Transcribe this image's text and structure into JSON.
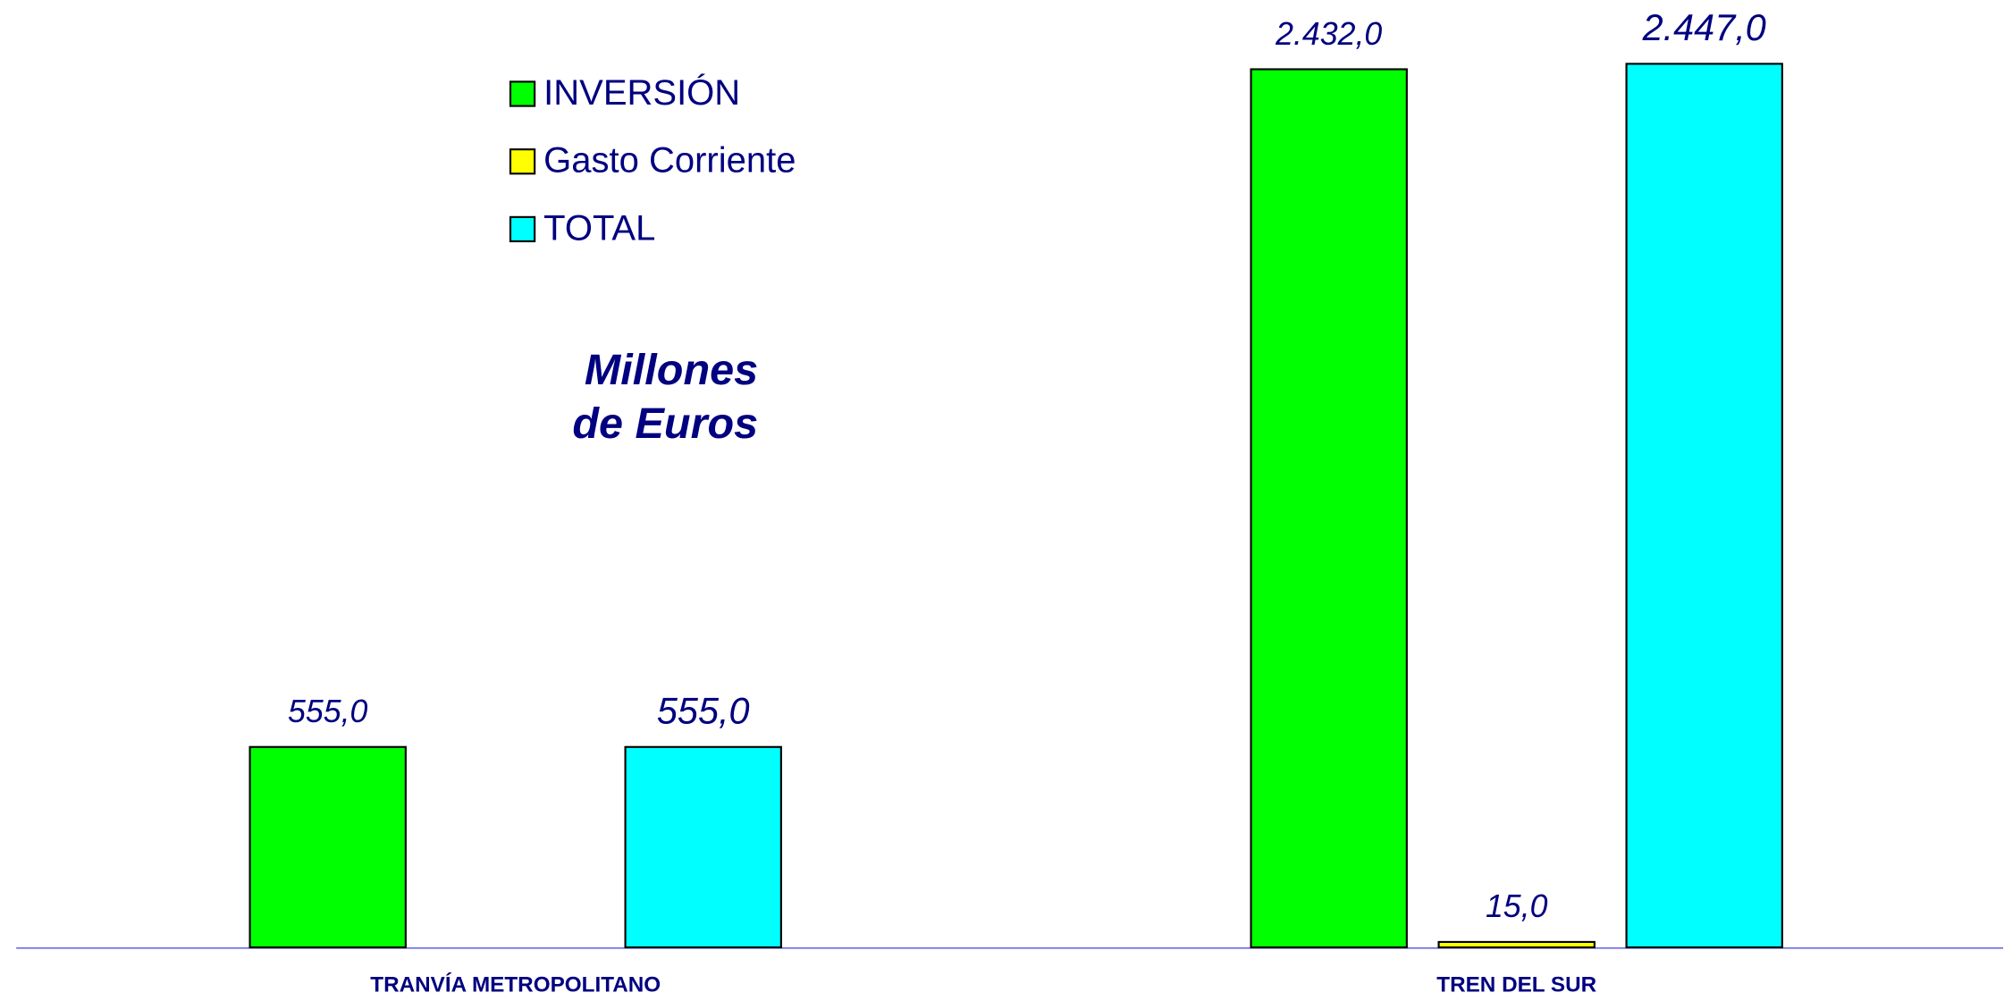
{
  "chart_data": {
    "type": "bar",
    "annotation": [
      "Millones",
      "de Euros"
    ],
    "categories": [
      "TRANVÍA METROPOLITANO",
      "TREN DEL SUR"
    ],
    "series": [
      {
        "name": "INVERSIÓN",
        "color": "#00ff00",
        "values": [
          555,
          2432
        ],
        "value_labels": [
          "555,0",
          "2.432,0"
        ]
      },
      {
        "name": "Gasto Corriente",
        "color": "#ffff00",
        "values": [
          null,
          15
        ],
        "value_labels": [
          null,
          "15,0"
        ]
      },
      {
        "name": "TOTAL",
        "color": "#00ffff",
        "values": [
          555,
          2447
        ],
        "value_labels": [
          "555,0",
          "2.447,0"
        ]
      }
    ],
    "legend": "upper left"
  }
}
